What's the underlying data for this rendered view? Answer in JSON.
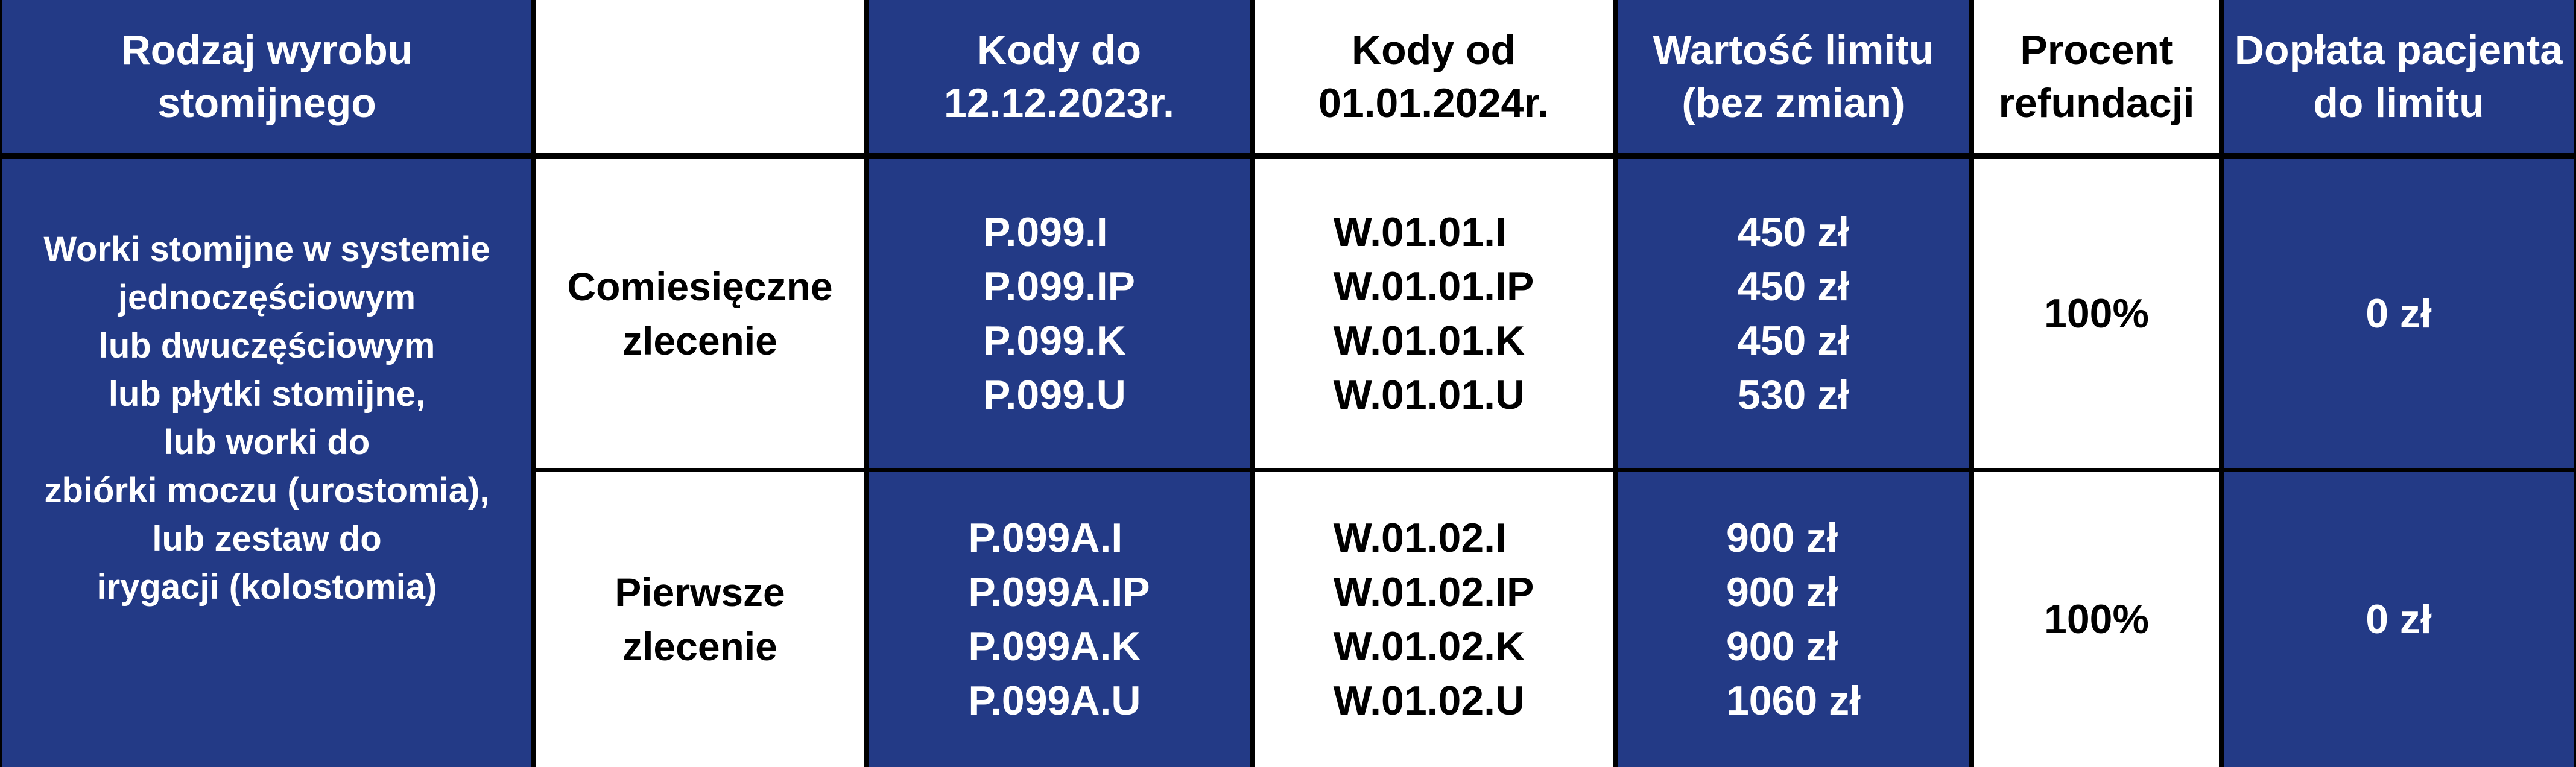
{
  "table": {
    "header": [
      [
        "Rodzaj wyrobu",
        "stomijnego"
      ],
      [
        "Kody do",
        "12.12.2023r."
      ],
      [
        "Kody od",
        "01.01.2024r."
      ],
      [
        "Wartość limitu",
        "(bez zmian)"
      ],
      [
        "Procent",
        "refundacji"
      ],
      [
        "Dopłata pacjenta",
        "do limitu"
      ]
    ],
    "product": [
      "Worki stomijne w systemie",
      "jednoczęściowym",
      "lub dwuczęściowym",
      "lub płytki stomijne,",
      "lub worki do",
      "zbiórki moczu (urostomia),",
      "lub zestaw do",
      "irygacji (kolostomia)"
    ],
    "rows": [
      {
        "order": [
          "Comiesięczne",
          "zlecenie"
        ],
        "codes_old": [
          "P.099.I",
          "P.099.IP",
          "P.099.K",
          "P.099.U"
        ],
        "codes_new": [
          "W.01.01.I",
          "W.01.01.IP",
          "W.01.01.K",
          "W.01.01.U"
        ],
        "limits": [
          "450 zł",
          "450 zł",
          "450 zł",
          "530 zł"
        ],
        "percent": "100%",
        "copay": "0 zł"
      },
      {
        "order": [
          "Pierwsze",
          "zlecenie"
        ],
        "codes_old": [
          "P.099A.I",
          "P.099A.IP",
          "P.099A.K",
          "P.099A.U"
        ],
        "codes_new": [
          "W.01.02.I",
          "W.01.02.IP",
          "W.01.02.K",
          "W.01.02.U"
        ],
        "limits": [
          "900 zł",
          "900 zł",
          "900 zł",
          "1060 zł"
        ],
        "percent": "100%",
        "copay": "0 zł"
      }
    ]
  }
}
